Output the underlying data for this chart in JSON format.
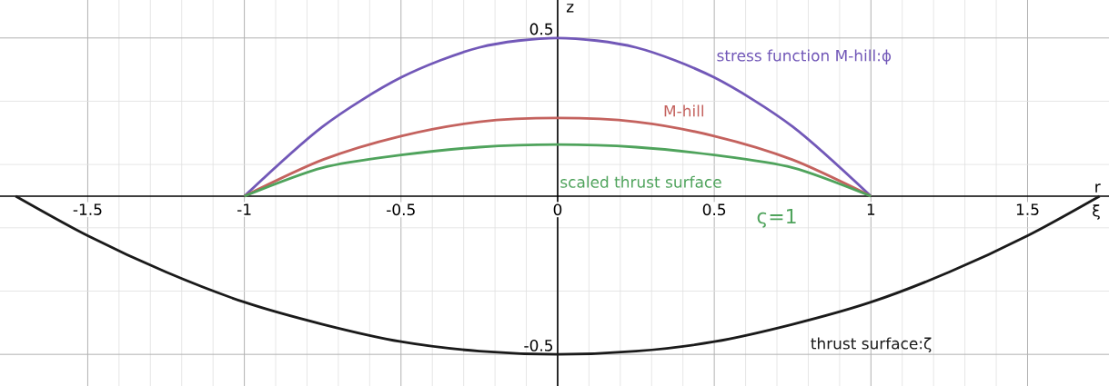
{
  "chart_data": {
    "type": "line",
    "xlabel": "r",
    "ylabel": "z",
    "x": [
      -1.73,
      -1.5,
      -1.25,
      -1,
      -0.75,
      -0.5,
      -0.25,
      0,
      0.25,
      0.5,
      0.75,
      1,
      1.25,
      1.5,
      1.73
    ],
    "series": [
      {
        "name": "stress function M-hill:ϕ",
        "color": "#7258b8",
        "values": [
          null,
          null,
          null,
          0,
          0.22,
          0.375,
          0.47,
          0.5,
          0.47,
          0.375,
          0.22,
          0,
          null,
          null,
          null
        ]
      },
      {
        "name": "M-hill",
        "color": "#c4625e",
        "values": [
          null,
          null,
          null,
          0,
          0.115,
          0.19,
          0.235,
          0.247,
          0.235,
          0.19,
          0.115,
          0,
          null,
          null,
          null
        ]
      },
      {
        "name": "scaled thrust surface",
        "color": "#4fa35c",
        "values": [
          null,
          null,
          null,
          0,
          0.09,
          0.13,
          0.155,
          0.163,
          0.155,
          0.13,
          0.09,
          0,
          null,
          null,
          null
        ]
      },
      {
        "name": "thrust surface:ζ",
        "color": "#1a1a1a",
        "values": [
          0,
          -0.125,
          -0.24,
          -0.335,
          -0.405,
          -0.46,
          -0.49,
          -0.5,
          -0.49,
          -0.46,
          -0.405,
          -0.335,
          -0.24,
          -0.125,
          0
        ]
      }
    ],
    "annotations": [
      "ς=1",
      "ξ"
    ],
    "xlim": [
      -1.78,
      1.76
    ],
    "ylim": [
      -0.6,
      0.62
    ],
    "xticks": [
      -1.5,
      -1,
      -0.5,
      0,
      0.5,
      1,
      1.5
    ],
    "yticks": [
      -0.5,
      0.5
    ],
    "grid": true,
    "marker": "none",
    "line_style": "solid"
  }
}
